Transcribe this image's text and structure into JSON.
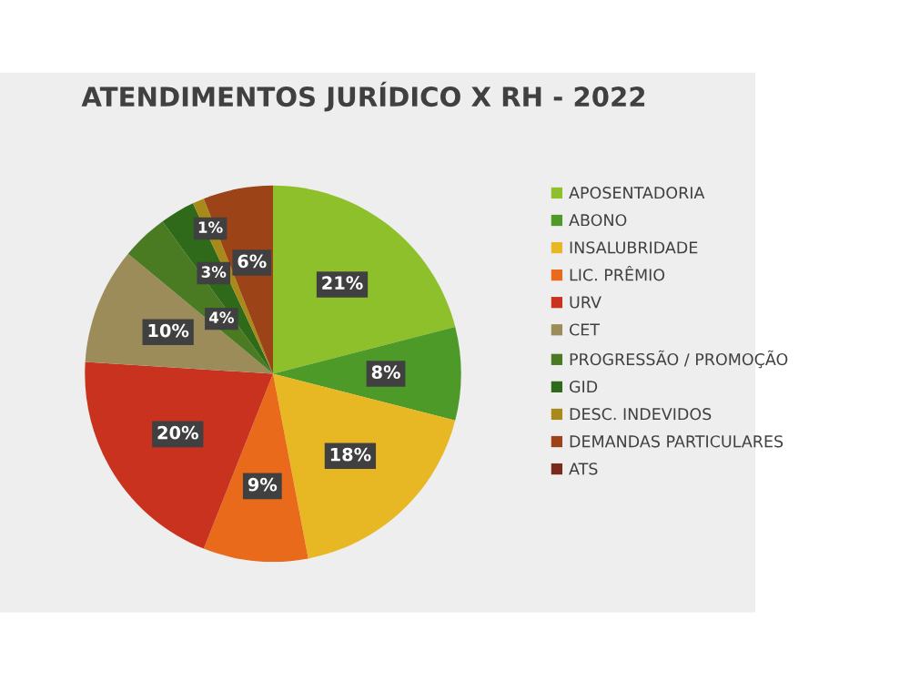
{
  "chart_data": {
    "type": "pie",
    "title": "ATENDIMENTOS JURÍDICO X RH - 2022",
    "categories": [
      "APOSENTADORIA",
      "ABONO",
      "INSALUBRIDADE",
      "LIC. PRÊMIO",
      "URV",
      "CET",
      "PROGRESSÃO / PROMOÇÃO",
      "GID",
      "DESC. INDEVIDOS",
      "DEMANDAS PARTICULARES",
      "ATS"
    ],
    "values": [
      21,
      8,
      18,
      9,
      20,
      10,
      4,
      3,
      1,
      6,
      0
    ],
    "colors": [
      "#8dc02a",
      "#4e9a28",
      "#e8b824",
      "#e86a1a",
      "#c8321e",
      "#9c8c5a",
      "#4a7a22",
      "#2e6a1a",
      "#a88a1a",
      "#9c4418",
      "#7a2a1a"
    ],
    "value_labels": [
      "21%",
      "8%",
      "18%",
      "9%",
      "20%",
      "10%",
      "4%",
      "3%",
      "1%",
      "6%",
      null
    ],
    "legend": "right"
  }
}
